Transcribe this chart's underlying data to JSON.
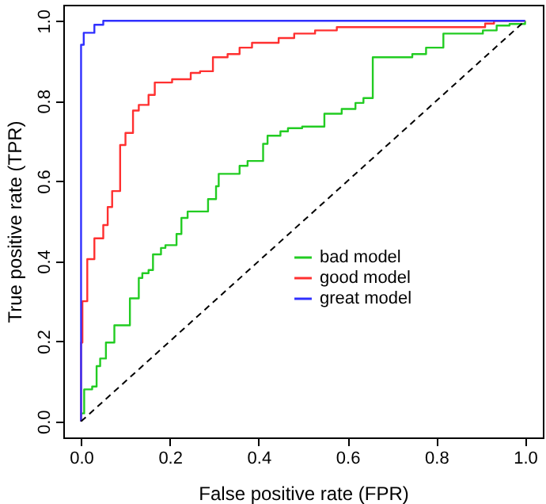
{
  "chart_data": {
    "type": "line",
    "xlabel": "False positive rate (FPR)",
    "ylabel": "True positive rate (TPR)",
    "xlim": [
      -0.04,
      1.04
    ],
    "ylim": [
      -0.04,
      1.04
    ],
    "xticks": [
      {
        "value": 0,
        "label": "0.0"
      },
      {
        "value": 0.2,
        "label": "0.2"
      },
      {
        "value": 0.4,
        "label": "0.4"
      },
      {
        "value": 0.6,
        "label": "0.6"
      },
      {
        "value": 0.8,
        "label": "0.8"
      },
      {
        "value": 1,
        "label": "1.0"
      }
    ],
    "yticks": [
      {
        "value": 0,
        "label": "0.0"
      },
      {
        "value": 0.2,
        "label": "0.2"
      },
      {
        "value": 0.4,
        "label": "0.4"
      },
      {
        "value": 0.6,
        "label": "0.6"
      },
      {
        "value": 0.8,
        "label": "0.8"
      },
      {
        "value": 1,
        "label": "1.0"
      }
    ],
    "grid": false,
    "legend": "bottom right",
    "marker": "none",
    "series": [
      {
        "name": "bad model",
        "color": "#22cc22",
        "x": [
          0,
          0,
          0.007,
          0.007,
          0.025,
          0.025,
          0.035,
          0.035,
          0.043,
          0.043,
          0.056,
          0.056,
          0.075,
          0.075,
          0.11,
          0.11,
          0.13,
          0.13,
          0.138,
          0.138,
          0.152,
          0.152,
          0.162,
          0.162,
          0.18,
          0.18,
          0.19,
          0.19,
          0.215,
          0.215,
          0.226,
          0.226,
          0.24,
          0.24,
          0.286,
          0.286,
          0.304,
          0.304,
          0.31,
          0.31,
          0.357,
          0.357,
          0.375,
          0.375,
          0.41,
          0.41,
          0.42,
          0.42,
          0.449,
          0.449,
          0.466,
          0.466,
          0.498,
          0.498,
          0.548,
          0.548,
          0.587,
          0.587,
          0.618,
          0.618,
          0.636,
          0.636,
          0.657,
          0.657,
          0.746,
          0.746,
          0.777,
          0.777,
          0.816,
          0.816,
          0.905,
          0.905,
          0.936,
          0.936,
          0.965,
          0.965,
          1,
          1
        ],
        "values": [
          0,
          0.02,
          0.02,
          0.08,
          0.08,
          0.087,
          0.087,
          0.138,
          0.138,
          0.157,
          0.157,
          0.197,
          0.197,
          0.24,
          0.24,
          0.307,
          0.307,
          0.358,
          0.358,
          0.37,
          0.37,
          0.378,
          0.378,
          0.417,
          0.417,
          0.433,
          0.433,
          0.44,
          0.44,
          0.468,
          0.468,
          0.508,
          0.508,
          0.524,
          0.524,
          0.555,
          0.555,
          0.587,
          0.587,
          0.618,
          0.618,
          0.638,
          0.638,
          0.65,
          0.65,
          0.693,
          0.693,
          0.713,
          0.713,
          0.724,
          0.724,
          0.732,
          0.732,
          0.736,
          0.736,
          0.768,
          0.768,
          0.78,
          0.78,
          0.795,
          0.795,
          0.807,
          0.807,
          0.909,
          0.909,
          0.917,
          0.917,
          0.933,
          0.933,
          0.968,
          0.968,
          0.976,
          0.976,
          0.988,
          0.988,
          0.992,
          0.992,
          1
        ]
      },
      {
        "name": "good model",
        "color": "#ff3030",
        "x": [
          0,
          0,
          0.003,
          0.003,
          0.014,
          0.014,
          0.03,
          0.03,
          0.05,
          0.05,
          0.06,
          0.06,
          0.07,
          0.07,
          0.088,
          0.088,
          0.1,
          0.1,
          0.117,
          0.117,
          0.13,
          0.13,
          0.152,
          0.152,
          0.166,
          0.166,
          0.205,
          0.205,
          0.247,
          0.247,
          0.268,
          0.268,
          0.297,
          0.297,
          0.33,
          0.33,
          0.357,
          0.357,
          0.385,
          0.385,
          0.445,
          0.445,
          0.48,
          0.48,
          0.527,
          0.527,
          0.576,
          0.576,
          0.91,
          0.91,
          0.93,
          0.93,
          1
        ],
        "values": [
          0,
          0.197,
          0.197,
          0.3,
          0.3,
          0.405,
          0.405,
          0.457,
          0.457,
          0.49,
          0.49,
          0.535,
          0.535,
          0.575,
          0.575,
          0.69,
          0.69,
          0.72,
          0.72,
          0.776,
          0.776,
          0.79,
          0.79,
          0.815,
          0.815,
          0.846,
          0.846,
          0.854,
          0.854,
          0.87,
          0.87,
          0.874,
          0.874,
          0.909,
          0.909,
          0.917,
          0.917,
          0.933,
          0.933,
          0.945,
          0.945,
          0.957,
          0.957,
          0.968,
          0.968,
          0.976,
          0.976,
          0.984,
          0.984,
          0.993,
          0.993,
          1,
          1
        ]
      },
      {
        "name": "great model",
        "color": "#3030ff",
        "x": [
          0,
          0,
          0.006,
          0.006,
          0.03,
          0.03,
          0.05,
          0.05,
          1
        ],
        "values": [
          0,
          0.94,
          0.94,
          0.97,
          0.97,
          0.99,
          0.99,
          1,
          1
        ]
      },
      {
        "color": "#000000",
        "line_style": "dashed",
        "x": [
          0,
          1
        ],
        "values": [
          0,
          1
        ]
      }
    ]
  }
}
